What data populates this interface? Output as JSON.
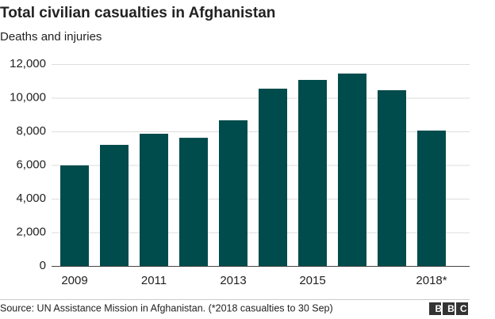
{
  "chart_data": {
    "type": "bar",
    "title": "Total civilian casualties in Afghanistan",
    "subtitle": "Deaths and injuries",
    "categories": [
      "2009",
      null,
      "2011",
      null,
      "2013",
      null,
      "2015",
      null,
      null,
      "2018*"
    ],
    "values": [
      5980,
      7200,
      7860,
      7620,
      8660,
      10540,
      11060,
      11440,
      10450,
      8050
    ],
    "color": "#004b4b",
    "ylim": [
      0,
      12000
    ],
    "yticks": [
      0,
      {
        "value": 2000,
        "label": "2,000"
      },
      {
        "value": 4000,
        "label": "4,000"
      },
      {
        "value": 6000,
        "label": "6,000"
      },
      {
        "value": 8000,
        "label": "8,000"
      },
      {
        "value": 10000,
        "label": "10,000"
      },
      {
        "value": 12000,
        "label": "12,000"
      }
    ],
    "grid": true,
    "source": "Source: UN Assistance Mission in Afghanistan. (*2018 casualties to 30 Sep)",
    "logo": "BBC"
  }
}
